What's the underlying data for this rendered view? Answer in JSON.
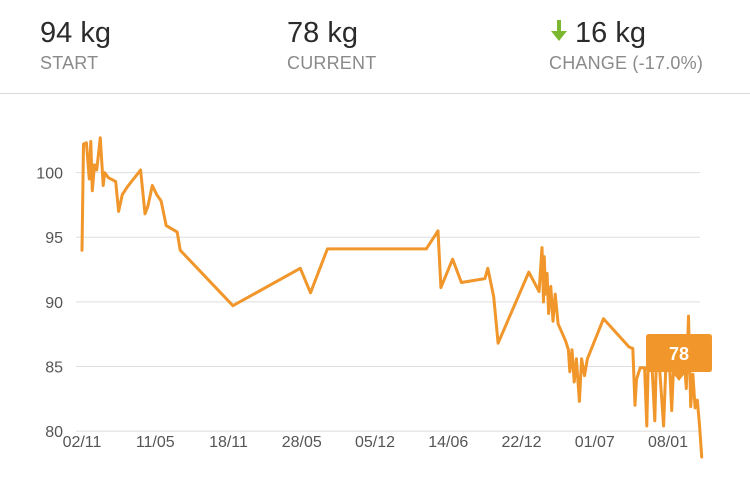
{
  "summary": {
    "start": {
      "value": "94 kg",
      "label": "START"
    },
    "current": {
      "value": "78 kg",
      "label": "CURRENT"
    },
    "change": {
      "value": "16 kg",
      "label": "CHANGE (-17.0%)",
      "direction_icon": "down-arrow-icon",
      "icon_color": "#7cb82f"
    }
  },
  "colors": {
    "line": "#f0962b",
    "grid": "#dedede",
    "axis_text": "#555555",
    "callout": "#f0962b",
    "callout_text": "#ffffff"
  },
  "chart_data": {
    "type": "line",
    "title": "",
    "xlabel": "",
    "ylabel": "",
    "ylim": [
      76.3,
      106
    ],
    "grid": true,
    "y_ticks": [
      80,
      85,
      90,
      95,
      100
    ],
    "x_ticks": [
      "02/11",
      "11/05",
      "18/11",
      "28/05",
      "05/12",
      "14/06",
      "22/12",
      "01/07",
      "08/01"
    ],
    "x_tick_positions": [
      0,
      1,
      2,
      3,
      4,
      5,
      6,
      7,
      8
    ],
    "callout": {
      "label": "78",
      "x": 8.15,
      "y": 78
    },
    "series": [
      {
        "values": [
          [
            0.0,
            94.0
          ],
          [
            0.02,
            102.2
          ],
          [
            0.06,
            102.3
          ],
          [
            0.1,
            99.5
          ],
          [
            0.12,
            102.4
          ],
          [
            0.14,
            98.6
          ],
          [
            0.17,
            100.6
          ],
          [
            0.2,
            100.2
          ],
          [
            0.25,
            102.7
          ],
          [
            0.29,
            99.0
          ],
          [
            0.31,
            100.0
          ],
          [
            0.36,
            99.6
          ],
          [
            0.46,
            99.3
          ],
          [
            0.5,
            97.0
          ],
          [
            0.55,
            98.3
          ],
          [
            0.62,
            98.9
          ],
          [
            0.8,
            100.2
          ],
          [
            0.86,
            96.8
          ],
          [
            0.9,
            97.4
          ],
          [
            0.96,
            99.0
          ],
          [
            1.02,
            98.3
          ],
          [
            1.08,
            97.8
          ],
          [
            1.15,
            95.9
          ],
          [
            1.3,
            95.4
          ],
          [
            1.34,
            94.0
          ],
          [
            2.06,
            89.7
          ],
          [
            2.98,
            92.6
          ],
          [
            3.12,
            90.7
          ],
          [
            3.35,
            94.1
          ],
          [
            4.7,
            94.1
          ],
          [
            4.86,
            95.5
          ],
          [
            4.9,
            91.1
          ],
          [
            5.06,
            93.3
          ],
          [
            5.18,
            91.5
          ],
          [
            5.5,
            91.8
          ],
          [
            5.54,
            92.6
          ],
          [
            5.62,
            90.4
          ],
          [
            5.68,
            86.8
          ],
          [
            6.1,
            92.3
          ],
          [
            6.24,
            90.8
          ],
          [
            6.28,
            94.2
          ],
          [
            6.3,
            90.0
          ],
          [
            6.31,
            93.5
          ],
          [
            6.33,
            90.6
          ],
          [
            6.35,
            92.2
          ],
          [
            6.37,
            89.1
          ],
          [
            6.4,
            91.2
          ],
          [
            6.43,
            88.5
          ],
          [
            6.46,
            90.6
          ],
          [
            6.5,
            88.3
          ],
          [
            6.6,
            87.0
          ],
          [
            6.64,
            86.3
          ],
          [
            6.66,
            84.6
          ],
          [
            6.69,
            86.3
          ],
          [
            6.72,
            83.8
          ],
          [
            6.75,
            85.6
          ],
          [
            6.79,
            82.3
          ],
          [
            6.82,
            85.6
          ],
          [
            6.86,
            84.3
          ],
          [
            6.9,
            85.6
          ],
          [
            7.12,
            88.7
          ],
          [
            7.47,
            86.5
          ],
          [
            7.52,
            86.4
          ],
          [
            7.55,
            82.0
          ],
          [
            7.57,
            84.0
          ],
          [
            7.62,
            84.9
          ],
          [
            7.68,
            84.9
          ],
          [
            7.71,
            80.4
          ],
          [
            7.73,
            85.2
          ],
          [
            7.78,
            85.2
          ],
          [
            7.82,
            80.8
          ],
          [
            7.84,
            85.3
          ],
          [
            7.88,
            85.3
          ],
          [
            7.94,
            80.4
          ],
          [
            7.97,
            84.9
          ],
          [
            8.02,
            85.2
          ],
          [
            8.05,
            81.6
          ],
          [
            8.08,
            85.6
          ],
          [
            8.12,
            86.7
          ],
          [
            8.2,
            87.3
          ],
          [
            8.25,
            83.3
          ],
          [
            8.28,
            88.9
          ],
          [
            8.31,
            81.9
          ],
          [
            8.34,
            84.4
          ],
          [
            8.37,
            81.8
          ],
          [
            8.4,
            82.4
          ],
          [
            8.43,
            80.5
          ],
          [
            8.46,
            78.0
          ]
        ]
      }
    ]
  }
}
